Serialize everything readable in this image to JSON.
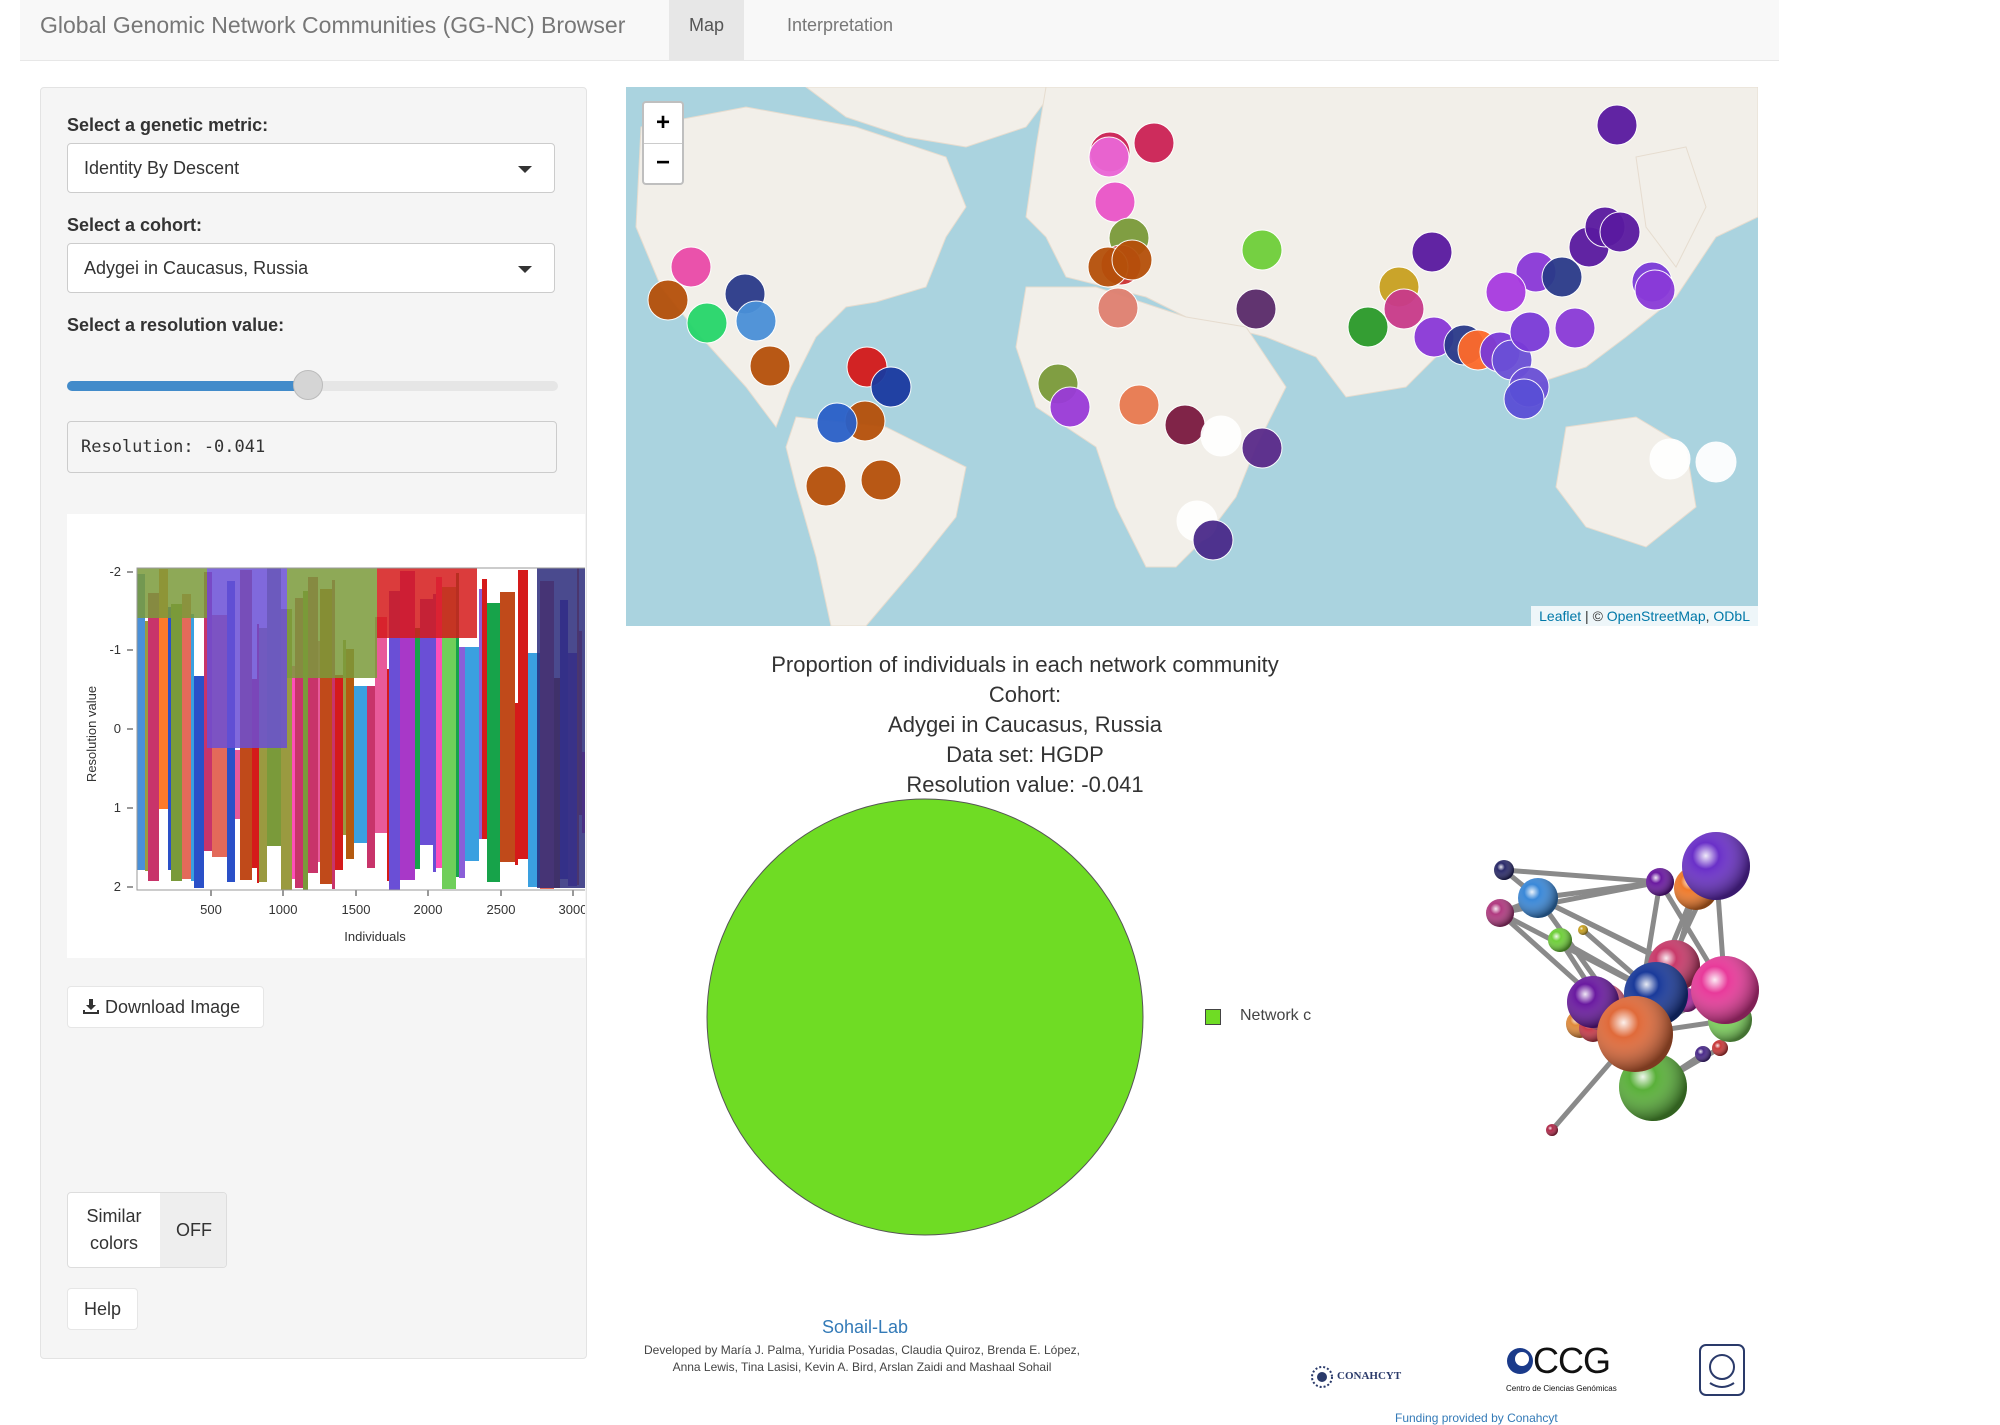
{
  "app": {
    "title": "Global Genomic Network Communities (GG-NC) Browser",
    "tabs": [
      {
        "label": "Map",
        "active": true
      },
      {
        "label": "Interpretation",
        "active": false
      }
    ]
  },
  "sidebar": {
    "metric_label": "Select a genetic metric:",
    "metric_value": "Identity By Descent",
    "cohort_label": "Select a cohort:",
    "cohort_value": "Adygei in Caucasus, Russia",
    "resolution_label": "Select a resolution value:",
    "slider_level": 0.49,
    "resolution_text": "Resolution: -0.041",
    "download_label": "Download Image",
    "similar_colors_label": "Similar colors",
    "similar_colors_line1": "Similar",
    "similar_colors_line2": "colors",
    "similar_colors_state": "OFF",
    "help_label": "Help"
  },
  "heatmap": {
    "ylabel": "Resolution value",
    "xlabel": "Individuals",
    "y_ticks": [
      "-2",
      "-1",
      "0",
      "1",
      "2"
    ],
    "x_ticks": [
      "500",
      "1000",
      "1500",
      "2000",
      "2500",
      "3000"
    ]
  },
  "map": {
    "zoom_in": "+",
    "zoom_out": "−",
    "attribution_leaflet": "Leaflet",
    "attribution_sep": " | © ",
    "attribution_osm": "OpenStreetMap",
    "attribution_comma": ", ",
    "attribution_odbl": "ODbL"
  },
  "pie": {
    "title_line1": "Proportion of individuals in each network community",
    "title_line2": "Cohort:",
    "title_line3": "Adygei in Caucasus, Russia",
    "title_line4": "Data set: HGDP",
    "title_line5": "Resolution value:  -0.041",
    "legend_label": "Network c",
    "color": "#6fdc24"
  },
  "chart_data": {
    "type": "pie",
    "categories": [
      "Network c"
    ],
    "values": [
      100
    ],
    "title": "Proportion of individuals in each network community"
  },
  "footer": {
    "lab_link": "Sohail-Lab",
    "credits_line1": "Developed by María J. Palma, Yuridia Posadas, Claudia Quiroz, Brenda E. López,",
    "credits_line2": "Anna Lewis, Tina Lasisi, Kevin A. Bird, Arslan Zaidi and Mashaal Sohail",
    "logo_conahcyt": "CONAHCYT",
    "logo_ccg": "CCG",
    "logo_ccg_sub": "Centro de Ciencias Genómicas",
    "funding": "Funding provided by Conahcyt"
  }
}
